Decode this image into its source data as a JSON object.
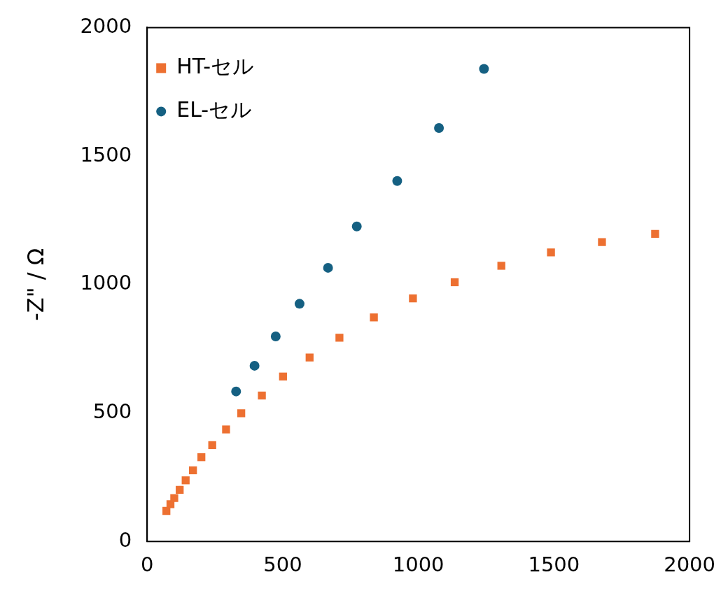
{
  "chart_data": {
    "type": "scatter",
    "ylabel": "-Z\" / Ω",
    "xlim": [
      0,
      2000
    ],
    "ylim": [
      0,
      2000
    ],
    "xticks": [
      0,
      500,
      1000,
      1500,
      2000
    ],
    "yticks": [
      0,
      500,
      1000,
      1500,
      2000
    ],
    "grid": false,
    "legend": "top left",
    "series": [
      {
        "name": "HT-セル",
        "color": "#ed7031",
        "marker": "square",
        "x": [
          71,
          86,
          100,
          120,
          142,
          169,
          200,
          240,
          291,
          347,
          423,
          501,
          599,
          709,
          836,
          980,
          1134,
          1306,
          1489,
          1677,
          1873
        ],
        "values": [
          119,
          145,
          169,
          201,
          238,
          277,
          328,
          375,
          436,
          499,
          568,
          642,
          716,
          793,
          872,
          946,
          1009,
          1073,
          1125,
          1165,
          1197
        ]
      },
      {
        "name": "EL-セル",
        "color": "#156082",
        "marker": "circle",
        "x": [
          328,
          396,
          474,
          562,
          667,
          773,
          922,
          1076,
          1242
        ],
        "values": [
          584,
          684,
          798,
          925,
          1065,
          1226,
          1403,
          1609,
          1839
        ]
      }
    ]
  }
}
